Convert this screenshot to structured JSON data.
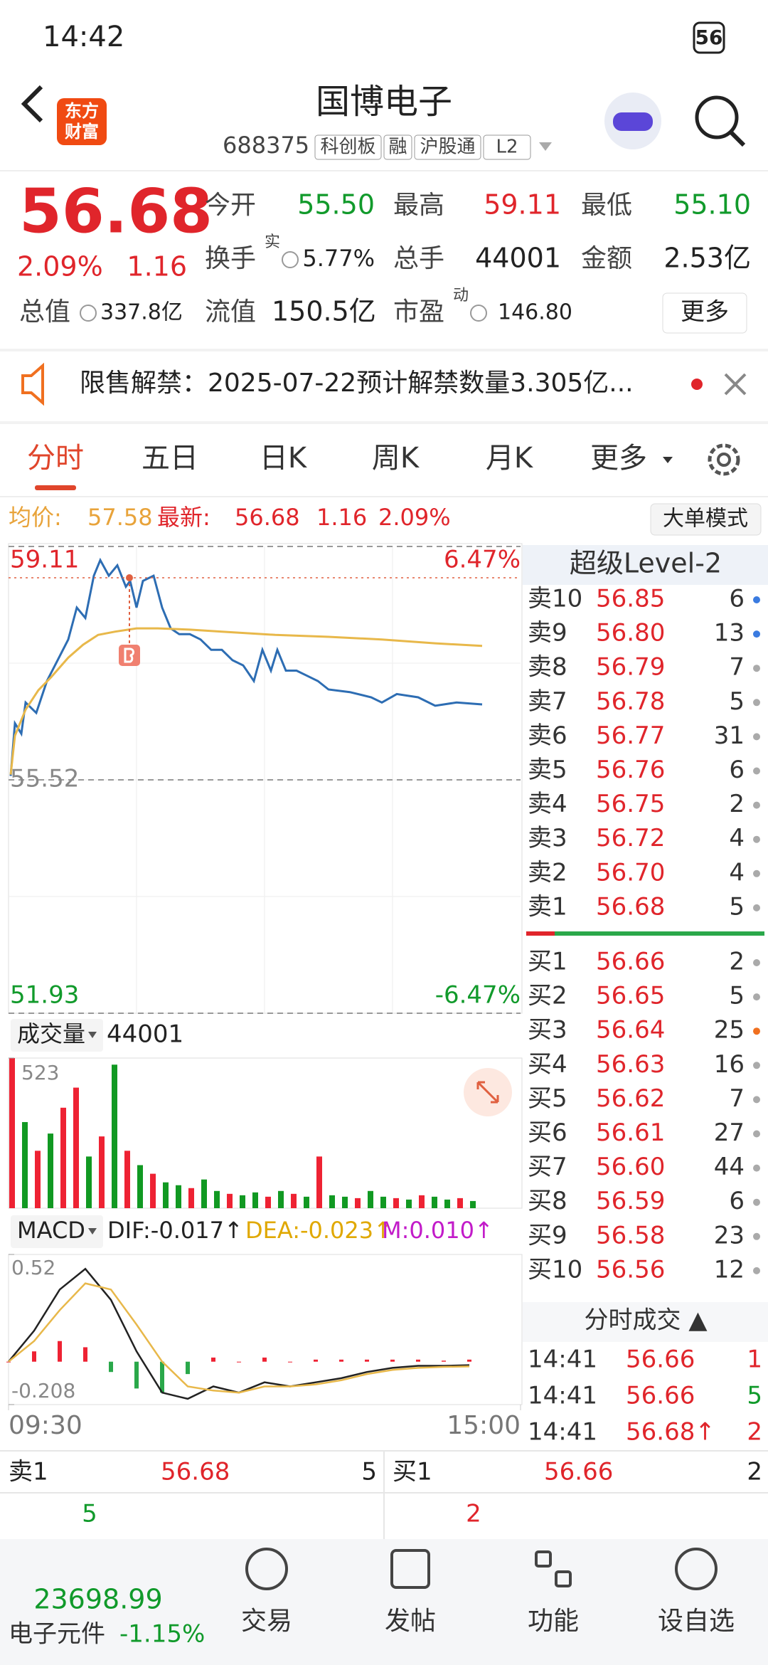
{
  "status_bar": {
    "time": "14:42",
    "battery": "56"
  },
  "header": {
    "logo_lines": [
      "东方",
      "财富"
    ],
    "title": "国博电子",
    "code": "688375",
    "tags": [
      "科创板",
      "融",
      "沪股通",
      "L2"
    ]
  },
  "quote": {
    "price": "56.68",
    "change_pct": "2.09%",
    "change": "1.16",
    "fields": [
      {
        "label": "今开",
        "value": "55.50"
      },
      {
        "label": "最高",
        "value": "59.11"
      },
      {
        "label": "最低",
        "value": "55.10"
      },
      {
        "label": "换手",
        "sup": "实",
        "value": "5.77%"
      },
      {
        "label": "总手",
        "value": "44001"
      },
      {
        "label": "金额",
        "value": "2.53亿"
      },
      {
        "label": "总值",
        "value": "337.8亿"
      },
      {
        "label": "流值",
        "value": "150.5亿"
      },
      {
        "label": "市盈",
        "sup": "动",
        "value": "146.80"
      }
    ],
    "more": "更多"
  },
  "notice": "限售解禁：2025-07-22预计解禁数量3.305亿...",
  "tabs": [
    "分时",
    "五日",
    "日K",
    "周K",
    "月K",
    "更多"
  ],
  "info": {
    "avg_label": "均价:",
    "avg": "57.58",
    "last_label": "最新:",
    "last": "56.68",
    "change": "1.16",
    "pct": "2.09%",
    "mode": "大单模式"
  },
  "chart_data": [
    {
      "type": "line",
      "xlim": [
        0,
        240
      ],
      "xticks": [
        {
          "value": 0,
          "label": "09:30"
        },
        {
          "value": 240,
          "label": "15:00"
        }
      ],
      "x": [
        1,
        3,
        6,
        8,
        13,
        18,
        23,
        28,
        32,
        36,
        40,
        43,
        47,
        51,
        55,
        57,
        60,
        63,
        68,
        72,
        76,
        80,
        85,
        90,
        95,
        100,
        105,
        110,
        115,
        119,
        123,
        126,
        130,
        135,
        140,
        145,
        150,
        160,
        170,
        175,
        182,
        192,
        200,
        210,
        222
      ],
      "series": [
        {
          "color": "#2d6db3",
          "values": [
            55.58,
            56.39,
            56.23,
            56.71,
            56.55,
            57.04,
            57.36,
            57.68,
            58.17,
            58.01,
            58.66,
            58.9,
            58.66,
            58.82,
            58.49,
            58.58,
            58.17,
            58.58,
            58.66,
            58.17,
            57.85,
            57.76,
            57.76,
            57.68,
            57.52,
            57.52,
            57.36,
            57.28,
            57.04,
            57.52,
            57.2,
            57.52,
            57.2,
            57.2,
            57.12,
            57.04,
            56.91,
            56.87,
            56.79,
            56.71,
            56.84,
            56.79,
            56.66,
            56.71,
            56.68
          ]
        },
        {
          "color": "#e8b84a",
          "x": [
            1,
            3,
            8,
            14,
            20,
            28,
            35,
            42,
            50,
            60,
            70,
            85,
            100,
            125,
            150,
            175,
            200,
            222
          ],
          "values": [
            55.6,
            56.2,
            56.6,
            56.9,
            57.1,
            57.4,
            57.6,
            57.75,
            57.8,
            57.85,
            57.85,
            57.83,
            57.8,
            57.75,
            57.72,
            57.68,
            57.62,
            57.58
          ]
        }
      ],
      "ylim": [
        51.93,
        59.11
      ],
      "yticks": [
        51.93,
        55.52,
        59.11
      ],
      "y2lim": [
        -6.47,
        6.47
      ],
      "y2ticks": [
        {
          "value": -6.47,
          "label": "-6.47%"
        },
        {
          "value": 6.47,
          "label": "6.47%"
        }
      ],
      "grid": true
    },
    {
      "type": "bar",
      "title": "成交量",
      "subtitle": "44001",
      "xlim": [
        0,
        240
      ],
      "x": [
        0,
        6,
        12,
        18,
        24,
        30,
        36,
        42,
        48,
        54,
        60,
        66,
        72,
        78,
        84,
        90,
        96,
        102,
        108,
        114,
        120,
        126,
        132,
        138,
        144,
        150,
        156,
        162,
        168,
        174,
        180,
        186,
        192,
        198,
        204,
        210,
        216
      ],
      "values": [
        523,
        300,
        200,
        260,
        350,
        420,
        180,
        250,
        500,
        200,
        150,
        120,
        90,
        80,
        70,
        100,
        60,
        50,
        45,
        55,
        40,
        60,
        50,
        40,
        180,
        45,
        40,
        35,
        60,
        40,
        35,
        30,
        45,
        40,
        30,
        35,
        25
      ],
      "colors": [
        "#e23",
        "#192",
        "#e23",
        "#192",
        "#e23",
        "#e23",
        "#192",
        "#e23",
        "#192",
        "#e23",
        "#192",
        "#e23",
        "#192",
        "#192",
        "#e23",
        "#192",
        "#192",
        "#e23",
        "#192",
        "#192",
        "#e23",
        "#192",
        "#e23",
        "#192",
        "#e23",
        "#192",
        "#192",
        "#e23",
        "#192",
        "#192",
        "#e23",
        "#192",
        "#e23",
        "#192",
        "#192",
        "#e23",
        "#192"
      ],
      "ylim": [
        0,
        523
      ],
      "yticks": [
        523
      ]
    },
    {
      "type": "macd",
      "title": "MACD",
      "indicators": [
        {
          "text": "DIF:-0.017↑",
          "color": "#222"
        },
        {
          "text": "DEA:-0.023↑",
          "color": "#e0a800"
        },
        {
          "text": "M:0.010↑",
          "color": "#c21bc9"
        }
      ],
      "xlim": [
        0,
        240
      ],
      "x": [
        0,
        12,
        24,
        36,
        48,
        60,
        72,
        84,
        96,
        108,
        120,
        132,
        144,
        156,
        168,
        180,
        192,
        204,
        216
      ],
      "series": [
        {
          "color": "#222",
          "values": [
            0,
            0.15,
            0.35,
            0.45,
            0.3,
            0.05,
            -0.15,
            -0.18,
            -0.12,
            -0.15,
            -0.1,
            -0.12,
            -0.1,
            -0.08,
            -0.05,
            -0.03,
            -0.02,
            -0.02,
            -0.017
          ]
        },
        {
          "color": "#e8b84a",
          "values": [
            0,
            0.1,
            0.25,
            0.38,
            0.35,
            0.18,
            0,
            -0.12,
            -0.14,
            -0.15,
            -0.12,
            -0.12,
            -0.11,
            -0.09,
            -0.06,
            -0.04,
            -0.03,
            -0.025,
            -0.023
          ]
        }
      ],
      "bars": [
        0,
        0.05,
        0.1,
        0.07,
        -0.05,
        -0.13,
        -0.15,
        -0.06,
        0.02,
        0,
        0.02,
        0,
        0.01,
        0.01,
        0.01,
        0.01,
        0.01,
        0.005,
        0.01
      ],
      "ylim": [
        -0.208,
        0.52
      ],
      "yticks": [
        -0.208,
        0.52
      ]
    }
  ],
  "order_book": {
    "title": "超级Level-2",
    "asks": [
      {
        "label": "卖10",
        "price": "56.85",
        "vol": "6",
        "dot": "#3a7be0"
      },
      {
        "label": "卖9",
        "price": "56.80",
        "vol": "13",
        "dot": "#3a7be0"
      },
      {
        "label": "卖8",
        "price": "56.79",
        "vol": "7",
        "dot": "#aaa"
      },
      {
        "label": "卖7",
        "price": "56.78",
        "vol": "5",
        "dot": "#aaa"
      },
      {
        "label": "卖6",
        "price": "56.77",
        "vol": "31",
        "dot": "#aaa"
      },
      {
        "label": "卖5",
        "price": "56.76",
        "vol": "6",
        "dot": "#aaa"
      },
      {
        "label": "卖4",
        "price": "56.75",
        "vol": "2",
        "dot": "#aaa"
      },
      {
        "label": "卖3",
        "price": "56.72",
        "vol": "4",
        "dot": "#aaa"
      },
      {
        "label": "卖2",
        "price": "56.70",
        "vol": "4",
        "dot": "#aaa"
      },
      {
        "label": "卖1",
        "price": "56.68",
        "vol": "5",
        "dot": "#aaa"
      }
    ],
    "bids": [
      {
        "label": "买1",
        "price": "56.66",
        "vol": "2",
        "dot": "#aaa"
      },
      {
        "label": "买2",
        "price": "56.65",
        "vol": "5",
        "dot": "#aaa"
      },
      {
        "label": "买3",
        "price": "56.64",
        "vol": "25",
        "dot": "#f07020"
      },
      {
        "label": "买4",
        "price": "56.63",
        "vol": "16",
        "dot": "#aaa"
      },
      {
        "label": "买5",
        "price": "56.62",
        "vol": "7",
        "dot": "#aaa"
      },
      {
        "label": "买6",
        "price": "56.61",
        "vol": "27",
        "dot": "#aaa"
      },
      {
        "label": "买7",
        "price": "56.60",
        "vol": "44",
        "dot": "#aaa"
      },
      {
        "label": "买8",
        "price": "56.59",
        "vol": "6",
        "dot": "#aaa"
      },
      {
        "label": "买9",
        "price": "56.58",
        "vol": "23",
        "dot": "#aaa"
      },
      {
        "label": "买10",
        "price": "56.56",
        "vol": "12",
        "dot": "#aaa"
      }
    ]
  },
  "trades": {
    "title": "分时成交 ▲",
    "rows": [
      {
        "time": "14:41",
        "price": "56.66",
        "vol": "1",
        "color": "#e0252b"
      },
      {
        "time": "14:41",
        "price": "56.66",
        "vol": "5",
        "color": "#119a2b"
      },
      {
        "time": "14:41",
        "price": "56.68↑",
        "vol": "2",
        "color": "#e0252b"
      }
    ]
  },
  "bottom_quote": {
    "ask_label": "卖1",
    "ask_price": "56.68",
    "ask_vol": "5",
    "bid_label": "买1",
    "bid_price": "56.66",
    "bid_vol": "2",
    "ask_count": "5",
    "bid_count": "2"
  },
  "nav": {
    "index_value": "23698.99",
    "index_name": "电子元件",
    "index_change": "-1.15%",
    "items": [
      "交易",
      "发帖",
      "功能",
      "设自选"
    ]
  }
}
